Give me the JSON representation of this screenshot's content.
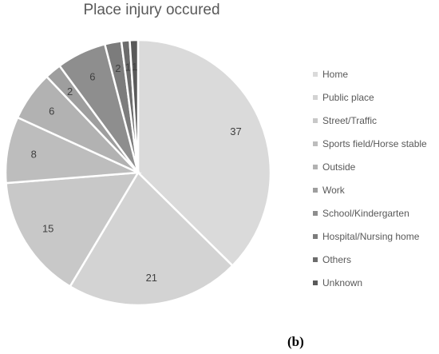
{
  "chart_data": {
    "type": "pie",
    "title": "Place injury occured",
    "categories": [
      "Home",
      "Public place",
      "Street/Traffic",
      "Sports field/Horse stable",
      "Outside",
      "Work",
      "School/Kindergarten",
      "Hospital/Nursing home",
      "Others",
      "Unknown"
    ],
    "values": [
      37,
      21,
      15,
      8,
      6,
      2,
      6,
      2,
      1,
      1
    ],
    "colors": [
      "#dadada",
      "#d3d3d3",
      "#c8c8c8",
      "#bdbdbd",
      "#b2b2b2",
      "#9e9e9e",
      "#8e8e8e",
      "#7c7c7c",
      "#6c6c6c",
      "#5a5a5a"
    ],
    "legend_position": "right",
    "start_angle_deg": 0,
    "direction": "clockwise"
  },
  "panel_label": "(b)"
}
